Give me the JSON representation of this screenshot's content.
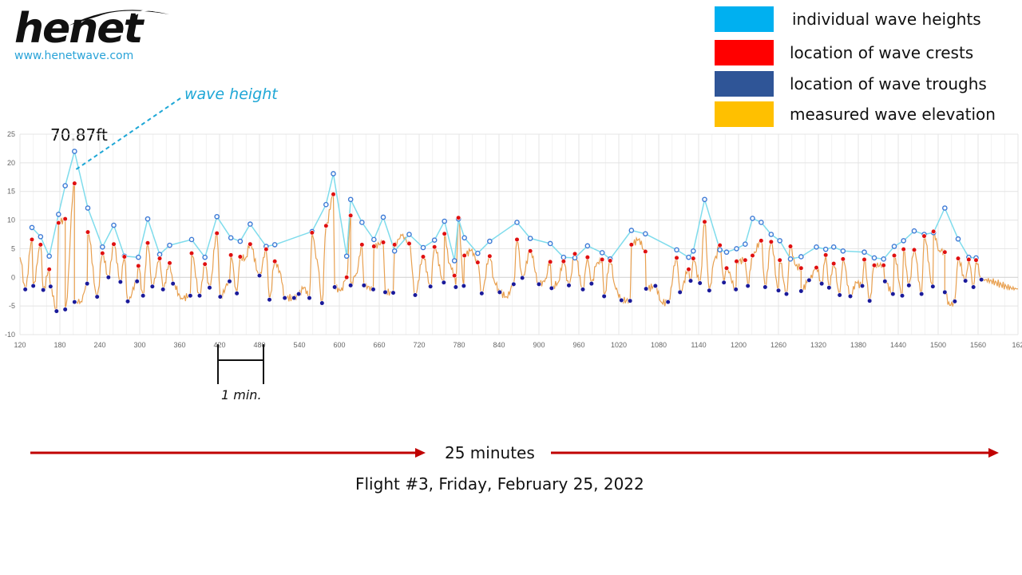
{
  "logo": {
    "word": "henet",
    "url": "www.henetwave.com"
  },
  "legend": [
    {
      "label": "individual wave heights",
      "color": "#00b0f0"
    },
    {
      "label": "location of wave crests",
      "color": "#ff0000"
    },
    {
      "label": "location of wave troughs",
      "color": "#2f5597"
    },
    {
      "label": "measured wave elevation",
      "color": "#ffc000"
    }
  ],
  "annotations": {
    "wave_height_label": "wave height",
    "max_value_label": "70.87ft",
    "scale_label": "1 min.",
    "duration_label": "25 minutes"
  },
  "caption": "Flight #3, Friday, February 25, 2022",
  "colors": {
    "height_line": "#7fdcec",
    "height_marker": "#3e7bd6",
    "crest": "#e01010",
    "trough": "#1a1a9a",
    "elevation": "#e8a050",
    "arrow": "#c00000",
    "annotation": "#1ea7d6",
    "grid": "#e4e4e4"
  },
  "chart_data": {
    "type": "line",
    "xlim": [
      120,
      1620
    ],
    "ylim": [
      -10,
      25
    ],
    "x_ticks": [
      "120",
      "180",
      "240",
      "300",
      "360",
      "420",
      "480",
      "540",
      "600",
      "660",
      "720",
      "780",
      "840",
      "900",
      "960",
      "1020",
      "1080",
      "1140",
      "1200",
      "1260",
      "1320",
      "1380",
      "1440",
      "1500",
      "1560",
      "162"
    ],
    "y_ticks": [
      "25",
      "20",
      "15",
      "10",
      "5",
      "0",
      "-5",
      "-10"
    ],
    "grid": true,
    "series": [
      {
        "name": "individual wave heights",
        "kind": "line-markers",
        "points": [
          [
            138,
            8.7
          ],
          [
            151,
            7.1
          ],
          [
            164,
            3.7
          ],
          [
            178,
            11
          ],
          [
            188,
            16
          ],
          [
            202,
            22
          ],
          [
            222,
            12.1
          ],
          [
            244,
            5.3
          ],
          [
            261,
            9.1
          ],
          [
            277,
            3.7
          ],
          [
            298,
            3.5
          ],
          [
            312,
            10.2
          ],
          [
            330,
            4
          ],
          [
            345,
            5.6
          ],
          [
            378,
            6.6
          ],
          [
            398,
            3.5
          ],
          [
            416,
            10.6
          ],
          [
            437,
            6.9
          ],
          [
            451,
            6.3
          ],
          [
            466,
            9.3
          ],
          [
            490,
            5.4
          ],
          [
            503,
            5.7
          ],
          [
            559,
            8
          ],
          [
            580,
            12.7
          ],
          [
            591,
            18.1
          ],
          [
            611,
            3.7
          ],
          [
            617,
            13.6
          ],
          [
            634,
            9.6
          ],
          [
            652,
            6.6
          ],
          [
            666,
            10.5
          ],
          [
            683,
            4.6
          ],
          [
            705,
            7.5
          ],
          [
            726,
            5.2
          ],
          [
            743,
            6.5
          ],
          [
            758,
            9.8
          ],
          [
            773,
            2.9
          ],
          [
            779,
            10.2
          ],
          [
            788,
            6.9
          ],
          [
            808,
            4.2
          ],
          [
            826,
            6.3
          ],
          [
            867,
            9.6
          ],
          [
            887,
            6.8
          ],
          [
            917,
            5.9
          ],
          [
            937,
            3.5
          ],
          [
            954,
            3.4
          ],
          [
            973,
            5.5
          ],
          [
            995,
            4.3
          ],
          [
            1007,
            3.2
          ],
          [
            1039,
            8.2
          ],
          [
            1060,
            7.6
          ],
          [
            1107,
            4.8
          ],
          [
            1125,
            3.5
          ],
          [
            1132,
            4.6
          ],
          [
            1149,
            13.6
          ],
          [
            1172,
            4.8
          ],
          [
            1182,
            4.4
          ],
          [
            1197,
            5
          ],
          [
            1210,
            5.8
          ],
          [
            1221,
            10.3
          ],
          [
            1234,
            9.6
          ],
          [
            1249,
            7.5
          ],
          [
            1262,
            6.4
          ],
          [
            1278,
            3.2
          ],
          [
            1294,
            3.6
          ],
          [
            1317,
            5.3
          ],
          [
            1331,
            4.9
          ],
          [
            1343,
            5.3
          ],
          [
            1357,
            4.6
          ],
          [
            1389,
            4.4
          ],
          [
            1404,
            3.4
          ],
          [
            1418,
            3.2
          ],
          [
            1434,
            5.4
          ],
          [
            1448,
            6.4
          ],
          [
            1464,
            8.1
          ],
          [
            1479,
            7.5
          ],
          [
            1493,
            7.8
          ],
          [
            1510,
            12.1
          ],
          [
            1530,
            6.7
          ],
          [
            1546,
            3.5
          ],
          [
            1557,
            3.4
          ]
        ]
      },
      {
        "name": "location of wave crests",
        "kind": "markers",
        "points": [
          [
            138,
            6.6
          ],
          [
            151,
            5.7
          ],
          [
            164,
            1.4
          ],
          [
            178,
            9.5
          ],
          [
            188,
            10.2
          ],
          [
            202,
            16.4
          ],
          [
            222,
            7.9
          ],
          [
            244,
            4.2
          ],
          [
            261,
            5.8
          ],
          [
            277,
            3.6
          ],
          [
            298,
            2
          ],
          [
            312,
            6
          ],
          [
            330,
            3.3
          ],
          [
            345,
            2.5
          ],
          [
            378,
            4.2
          ],
          [
            398,
            2.3
          ],
          [
            416,
            7.7
          ],
          [
            437,
            3.9
          ],
          [
            451,
            3.6
          ],
          [
            466,
            5.8
          ],
          [
            490,
            4.9
          ],
          [
            503,
            2.8
          ],
          [
            559,
            7.8
          ],
          [
            580,
            9
          ],
          [
            591,
            14.5
          ],
          [
            611,
            0
          ],
          [
            617,
            10.8
          ],
          [
            634,
            5.7
          ],
          [
            652,
            5.4
          ],
          [
            666,
            6.1
          ],
          [
            683,
            5.7
          ],
          [
            705,
            5.9
          ],
          [
            726,
            3.6
          ],
          [
            743,
            5.3
          ],
          [
            758,
            7.6
          ],
          [
            773,
            0.3
          ],
          [
            779,
            10.4
          ],
          [
            788,
            3.8
          ],
          [
            808,
            2.6
          ],
          [
            826,
            3.7
          ],
          [
            867,
            6.6
          ],
          [
            887,
            4.6
          ],
          [
            917,
            2.7
          ],
          [
            937,
            2.8
          ],
          [
            954,
            4.1
          ],
          [
            973,
            3.5
          ],
          [
            995,
            3.1
          ],
          [
            1007,
            2.9
          ],
          [
            1039,
            5.7
          ],
          [
            1060,
            4.5
          ],
          [
            1107,
            3.4
          ],
          [
            1125,
            1.4
          ],
          [
            1132,
            3.3
          ],
          [
            1149,
            9.7
          ],
          [
            1172,
            5.6
          ],
          [
            1182,
            1.6
          ],
          [
            1197,
            2.8
          ],
          [
            1210,
            3
          ],
          [
            1221,
            3.8
          ],
          [
            1234,
            6.4
          ],
          [
            1249,
            6.2
          ],
          [
            1262,
            3
          ],
          [
            1278,
            5.4
          ],
          [
            1294,
            1.6
          ],
          [
            1317,
            1.7
          ],
          [
            1331,
            3.9
          ],
          [
            1343,
            2.4
          ],
          [
            1357,
            3.2
          ],
          [
            1389,
            3.1
          ],
          [
            1404,
            2.1
          ],
          [
            1418,
            2.1
          ],
          [
            1434,
            3.8
          ],
          [
            1448,
            4.9
          ],
          [
            1464,
            4.8
          ],
          [
            1479,
            7.2
          ],
          [
            1493,
            8
          ],
          [
            1510,
            4.4
          ],
          [
            1530,
            3.3
          ],
          [
            1546,
            3.1
          ],
          [
            1557,
            3
          ]
        ]
      },
      {
        "name": "location of wave troughs",
        "kind": "markers",
        "points": [
          [
            128,
            -2.1
          ],
          [
            140,
            -1.5
          ],
          [
            155,
            -2.2
          ],
          [
            166,
            -1.6
          ],
          [
            175,
            -5.9
          ],
          [
            188,
            -5.6
          ],
          [
            202,
            -4.3
          ],
          [
            221,
            -1.1
          ],
          [
            236,
            -3.4
          ],
          [
            253,
            0
          ],
          [
            271,
            -0.8
          ],
          [
            282,
            -4.2
          ],
          [
            296,
            -0.7
          ],
          [
            305,
            -3.2
          ],
          [
            319,
            -1.6
          ],
          [
            335,
            -2.1
          ],
          [
            350,
            -1.1
          ],
          [
            376,
            -3.2
          ],
          [
            390,
            -3.2
          ],
          [
            405,
            -1.8
          ],
          [
            421,
            -3.4
          ],
          [
            435,
            -0.7
          ],
          [
            446,
            -2.8
          ],
          [
            480,
            0.3
          ],
          [
            495,
            -3.9
          ],
          [
            518,
            -3.6
          ],
          [
            532,
            -3.6
          ],
          [
            539,
            -2.9
          ],
          [
            555,
            -3.6
          ],
          [
            574,
            -4.5
          ],
          [
            593,
            -1.7
          ],
          [
            617,
            -1.4
          ],
          [
            637,
            -1.4
          ],
          [
            651,
            -2.1
          ],
          [
            669,
            -2.6
          ],
          [
            681,
            -2.7
          ],
          [
            714,
            -3.1
          ],
          [
            737,
            -1.6
          ],
          [
            757,
            -0.9
          ],
          [
            775,
            -1.7
          ],
          [
            787,
            -1.5
          ],
          [
            814,
            -2.8
          ],
          [
            841,
            -2.6
          ],
          [
            862,
            -1.2
          ],
          [
            875,
            -0.1
          ],
          [
            900,
            -1.2
          ],
          [
            919,
            -1.9
          ],
          [
            945,
            -1.4
          ],
          [
            966,
            -2.1
          ],
          [
            979,
            -1.1
          ],
          [
            998,
            -3.3
          ],
          [
            1024,
            -4
          ],
          [
            1037,
            -4.1
          ],
          [
            1061,
            -2
          ],
          [
            1075,
            -1.5
          ],
          [
            1094,
            -4.3
          ],
          [
            1112,
            -2.6
          ],
          [
            1128,
            -0.6
          ],
          [
            1142,
            -1
          ],
          [
            1156,
            -2.3
          ],
          [
            1178,
            -0.9
          ],
          [
            1196,
            -2.1
          ],
          [
            1214,
            -1.5
          ],
          [
            1240,
            -1.7
          ],
          [
            1260,
            -2.3
          ],
          [
            1272,
            -2.9
          ],
          [
            1294,
            -2.4
          ],
          [
            1306,
            -0.5
          ],
          [
            1325,
            -1.1
          ],
          [
            1336,
            -1.8
          ],
          [
            1352,
            -3.1
          ],
          [
            1368,
            -3.3
          ],
          [
            1386,
            -1.5
          ],
          [
            1397,
            -4.1
          ],
          [
            1420,
            -0.7
          ],
          [
            1432,
            -2.9
          ],
          [
            1446,
            -3.2
          ],
          [
            1456,
            -1.4
          ],
          [
            1475,
            -2.9
          ],
          [
            1492,
            -1.6
          ],
          [
            1510,
            -2.6
          ],
          [
            1525,
            -4.2
          ],
          [
            1541,
            -0.6
          ],
          [
            1553,
            -1.7
          ],
          [
            1565,
            -0.4
          ]
        ]
      },
      {
        "name": "measured wave elevation",
        "kind": "line"
      }
    ]
  }
}
